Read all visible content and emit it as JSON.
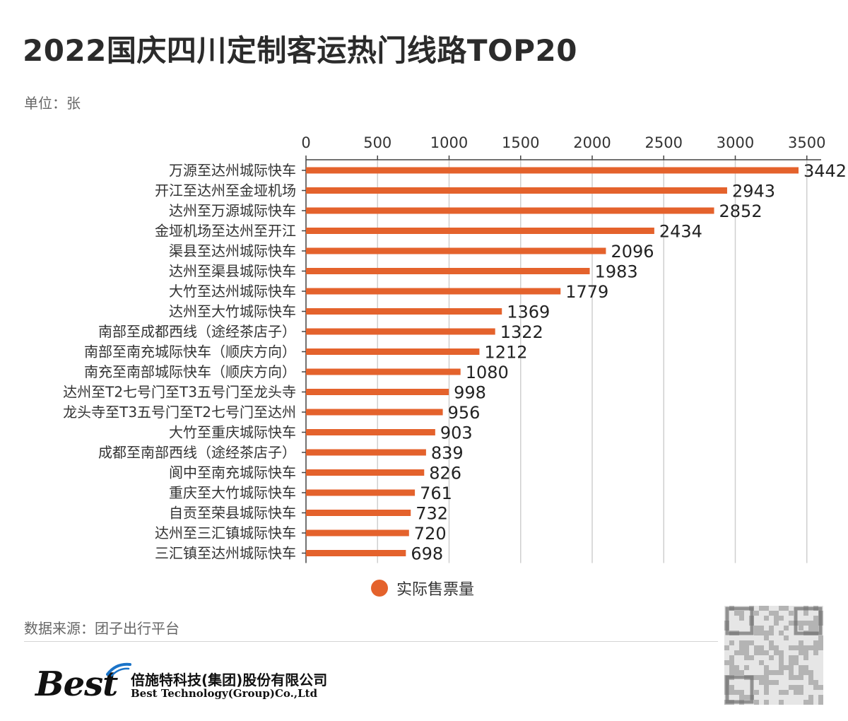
{
  "header": {
    "title": "2022国庆四川定制客运热门线路TOP20",
    "unit": "单位：张"
  },
  "chart_data": {
    "type": "bar",
    "orientation": "horizontal",
    "title": "2022国庆四川定制客运热门线路TOP20",
    "unit": "张",
    "categories": [
      "万源至达州城际快车",
      "开江至达州至金垭机场",
      "达州至万源城际快车",
      "金垭机场至达州至开江",
      "渠县至达州城际快车",
      "达州至渠县城际快车",
      "大竹至达州城际快车",
      "达州至大竹城际快车",
      "南部至成都西线（途经茶店子）",
      "南部至南充城际快车（顺庆方向）",
      "南充至南部城际快车（顺庆方向）",
      "达州至T2七号门至T3五号门至龙头寺",
      "龙头寺至T3五号门至T2七号门至达州",
      "大竹至重庆城际快车",
      "成都至南部西线（途经茶店子）",
      "阆中至南充城际快车",
      "重庆至大竹城际快车",
      "自贡至荣县城际快车",
      "达州至三汇镇城际快车",
      "三汇镇至达州城际快车"
    ],
    "series": [
      {
        "name": "实际售票量",
        "color": "#e4622c",
        "values": [
          3442,
          2943,
          2852,
          2434,
          2096,
          1983,
          1779,
          1369,
          1322,
          1212,
          1080,
          998,
          956,
          903,
          839,
          826,
          761,
          732,
          720,
          698
        ]
      }
    ],
    "x_ticks": [
      0,
      500,
      1000,
      1500,
      2000,
      2500,
      3000,
      3500
    ],
    "xlim": [
      0,
      3600
    ],
    "x_axis_position": "top",
    "grid": true,
    "legend_position": "bottom-center"
  },
  "legend": {
    "label": "实际售票量",
    "color": "#e4622c"
  },
  "footer": {
    "source": "数据来源：团子出行平台",
    "logo_text": "Best",
    "company_cn": "倍施特科技(集团)股份有限公司",
    "company_en": "Best Technology(Group)Co.,Ltd"
  }
}
